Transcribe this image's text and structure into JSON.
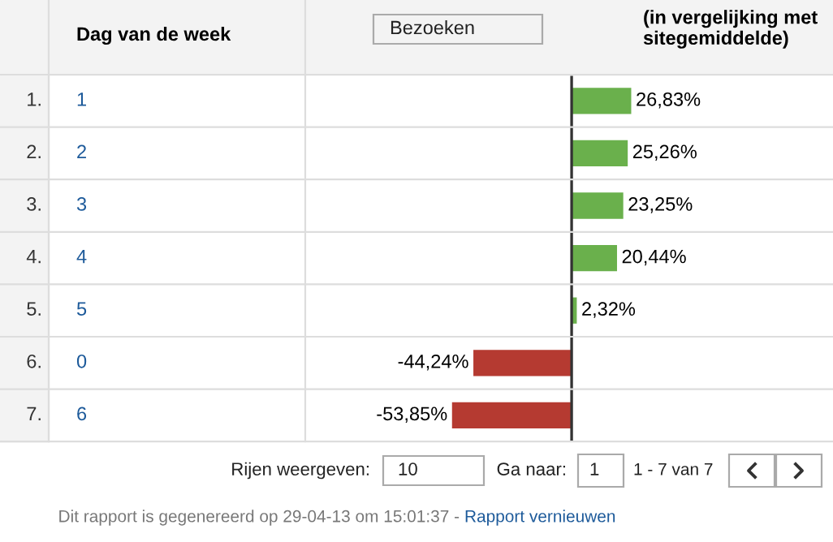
{
  "chart_data": {
    "type": "bar",
    "orientation": "horizontal",
    "title": "(in vergelijking met sitegemiddelde)",
    "ylabel": "Dag van de week",
    "categories": [
      "1",
      "2",
      "3",
      "4",
      "5",
      "0",
      "6"
    ],
    "values": [
      26.83,
      25.26,
      23.25,
      20.44,
      2.32,
      -44.24,
      -53.85
    ],
    "colors": [
      "#6ab04c",
      "#6ab04c",
      "#6ab04c",
      "#6ab04c",
      "#6ab04c",
      "#b53a31",
      "#b53a31"
    ],
    "value_labels": [
      "26,83%",
      "25,26%",
      "23,25%",
      "20,44%",
      "2,32%",
      "-44,24%",
      "-53,85%"
    ],
    "annotations": [
      "1.",
      "2.",
      "3.",
      "4.",
      "5.",
      "6.",
      "7.",
      "Bezoeken",
      "Rijen weergeven:",
      "10",
      "Ga naar:",
      "1",
      "1 - 7 van 7",
      "Dit rapport is gegenereerd op 29-04-13 om 15:01:37 -",
      "Rapport vernieuwen"
    ],
    "legend": false
  }
}
